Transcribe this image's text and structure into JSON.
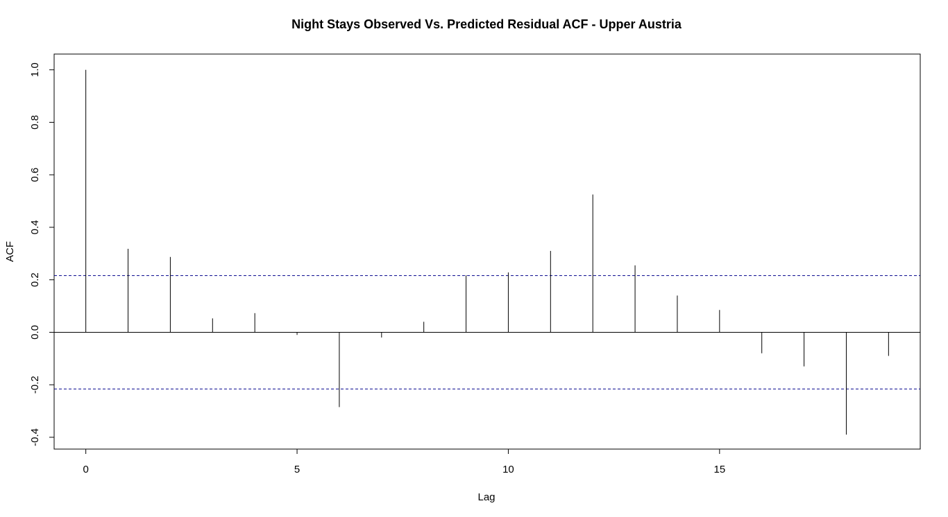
{
  "chart_data": {
    "type": "bar",
    "subtype": "acf",
    "title": "Night Stays Observed Vs. Predicted Residual ACF - Upper Austria",
    "xlabel": "Lag",
    "ylabel": "ACF",
    "x": [
      0,
      1,
      2,
      3,
      4,
      5,
      6,
      7,
      8,
      9,
      10,
      11,
      12,
      13,
      14,
      15,
      16,
      17,
      18,
      19
    ],
    "values": [
      1.0,
      0.318,
      0.287,
      0.053,
      0.073,
      -0.01,
      -0.285,
      -0.02,
      0.04,
      0.217,
      0.228,
      0.31,
      0.525,
      0.255,
      0.14,
      0.085,
      -0.08,
      -0.13,
      -0.39,
      -0.09
    ],
    "xlim": [
      -0.75,
      19.75
    ],
    "ylim": [
      -0.445,
      1.06
    ],
    "x_ticks": [
      0,
      5,
      10,
      15
    ],
    "y_ticks": [
      -0.4,
      -0.2,
      0.0,
      0.2,
      0.4,
      0.6,
      0.8,
      1.0
    ],
    "y_tick_labels": [
      "-0.4",
      "-0.2",
      "0.0",
      "0.2",
      "0.4",
      "0.6",
      "0.8",
      "1.0"
    ],
    "confidence_bound": 0.216,
    "confidence_line_color": "#00008B",
    "bar_color": "#000000",
    "grid": false,
    "legend": "none"
  }
}
